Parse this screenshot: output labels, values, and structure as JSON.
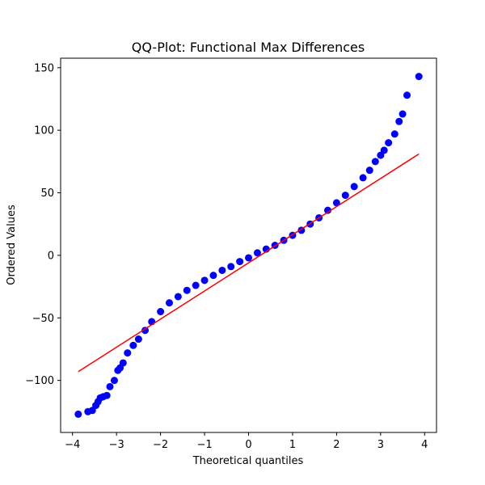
{
  "chart_data": {
    "type": "scatter",
    "title": "QQ-Plot: Functional Max Differences",
    "xlabel": "Theoretical quantiles",
    "ylabel": "Ordered Values",
    "xlim": [
      -4.27,
      4.27
    ],
    "ylim": [
      -141.6,
      157.6
    ],
    "xticks": [
      -4,
      -3,
      -2,
      -1,
      0,
      1,
      2,
      3,
      4
    ],
    "xtick_labels": [
      "−4",
      "−3",
      "−2",
      "−1",
      "0",
      "1",
      "2",
      "3",
      "4"
    ],
    "yticks": [
      -100,
      -50,
      0,
      50,
      100,
      150
    ],
    "ytick_labels": [
      "−100",
      "−50",
      "0",
      "50",
      "100",
      "150"
    ],
    "grid": false,
    "point_color": "#0000ff",
    "line_color": "#ff0000",
    "fit_line": {
      "x": [
        -3.87,
        3.87
      ],
      "y": [
        -93,
        81
      ]
    },
    "series": [
      {
        "x": [
          -3.87,
          -3.65,
          -3.55,
          -3.47,
          -3.42,
          -3.37,
          -3.3,
          -3.22,
          -3.15,
          -3.05,
          -2.97,
          -2.92,
          -2.85,
          -2.75,
          -2.62,
          -2.5,
          -2.35,
          -2.2,
          -2.0,
          -1.8,
          -1.6,
          -1.4,
          -1.2,
          -1.0,
          -0.8,
          -0.6,
          -0.4,
          -0.2,
          0.0,
          0.2,
          0.4,
          0.6,
          0.8,
          1.0,
          1.2,
          1.4,
          1.6,
          1.8,
          2.0,
          2.2,
          2.4,
          2.6,
          2.75,
          2.88,
          3.0,
          3.08,
          3.18,
          3.32,
          3.42,
          3.5,
          3.6,
          3.87
        ],
        "y": [
          -127,
          -125,
          -124,
          -120,
          -117,
          -114,
          -113,
          -112,
          -105,
          -100,
          -92,
          -90,
          -86,
          -78,
          -72,
          -67,
          -60,
          -53,
          -45,
          -38,
          -33,
          -28,
          -24,
          -20,
          -16,
          -12,
          -9,
          -5,
          -2,
          2,
          5,
          8,
          12,
          16,
          20,
          25,
          30,
          36,
          42,
          48,
          55,
          62,
          68,
          75,
          80,
          84,
          90,
          97,
          107,
          113,
          128,
          143
        ]
      }
    ]
  }
}
